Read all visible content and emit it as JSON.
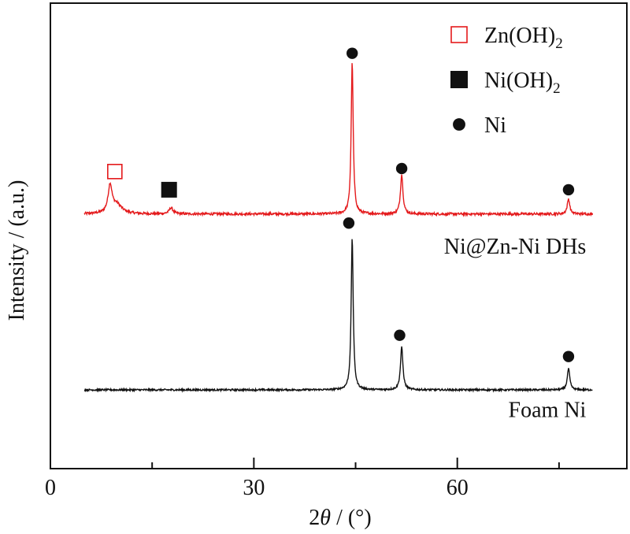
{
  "chart_data": {
    "type": "line",
    "xlabel_prefix": "2",
    "xlabel_symbol": "θ",
    "xlabel_suffix": " / (°)",
    "ylabel": "Intensity / (a.u.)",
    "xlim": [
      0,
      85
    ],
    "x_ticks": [
      0,
      30,
      60
    ],
    "x_tick_labels": [
      "0",
      "30",
      "60"
    ],
    "y_ticks_shown": false,
    "grid": false,
    "series": [
      {
        "name": "Ni@Zn-Ni DHs",
        "color": "#e41a1c",
        "offset": 0.58,
        "x_range": [
          5,
          80
        ],
        "noise": 0.004,
        "peaks": [
          {
            "x": 8.8,
            "height": 0.09,
            "width": 0.35
          },
          {
            "x": 9.8,
            "height": 0.03,
            "width": 0.9
          },
          {
            "x": 17.8,
            "height": 0.02,
            "width": 0.35
          },
          {
            "x": 44.5,
            "height": 0.5,
            "width": 0.18
          },
          {
            "x": 51.8,
            "height": 0.13,
            "width": 0.22
          },
          {
            "x": 76.4,
            "height": 0.05,
            "width": 0.22
          }
        ]
      },
      {
        "name": "Foam Ni",
        "color": "#111111",
        "offset": 0.0,
        "x_range": [
          5,
          80
        ],
        "noise": 0.003,
        "peaks": [
          {
            "x": 44.5,
            "height": 0.5,
            "width": 0.18
          },
          {
            "x": 51.8,
            "height": 0.14,
            "width": 0.22
          },
          {
            "x": 76.4,
            "height": 0.07,
            "width": 0.22
          }
        ]
      }
    ],
    "markers": [
      {
        "type": "Zn(OH)2",
        "shape": "open-square",
        "color": "#e41a1c",
        "x": 9.5,
        "y": 0.72
      },
      {
        "type": "Ni(OH)2",
        "shape": "filled-square",
        "color": "#111111",
        "x": 17.5,
        "y": 0.66
      },
      {
        "type": "Ni",
        "shape": "dot",
        "color": "#111111",
        "x": 44.5,
        "y": 1.11
      },
      {
        "type": "Ni",
        "shape": "dot",
        "color": "#111111",
        "x": 51.8,
        "y": 0.73
      },
      {
        "type": "Ni",
        "shape": "dot",
        "color": "#111111",
        "x": 76.4,
        "y": 0.66
      },
      {
        "type": "Ni",
        "shape": "dot",
        "color": "#111111",
        "x": 44.0,
        "y": 0.55
      },
      {
        "type": "Ni",
        "shape": "dot",
        "color": "#111111",
        "x": 51.5,
        "y": 0.18
      },
      {
        "type": "Ni",
        "shape": "dot",
        "color": "#111111",
        "x": 76.4,
        "y": 0.11
      }
    ],
    "legend": {
      "placement": "top-right",
      "entries": [
        {
          "shape": "open-square",
          "color": "#e41a1c",
          "label": "Zn(OH)",
          "sub": "2"
        },
        {
          "shape": "filled-square",
          "color": "#111111",
          "label": "Ni(OH)",
          "sub": "2"
        },
        {
          "shape": "dot",
          "color": "#111111",
          "label": "Ni",
          "sub": ""
        }
      ]
    },
    "series_labels": [
      {
        "text": "Ni@Zn-Ni DHs",
        "x": 79,
        "y": 0.45
      },
      {
        "text": "Foam Ni",
        "x": 79,
        "y": -0.09
      }
    ]
  }
}
